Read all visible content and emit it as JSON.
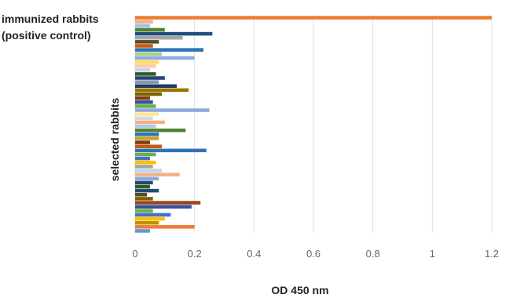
{
  "chart_data": {
    "type": "bar",
    "orientation": "horizontal",
    "title": "",
    "xlabel": "OD 450 nm",
    "ylabel": "selected rabbits",
    "annotation": [
      "immunized rabbits",
      "(positive control)"
    ],
    "xlim": [
      0,
      1.2
    ],
    "xticks": [
      "0",
      "0.2",
      "0.4",
      "0.6",
      "0.8",
      "1",
      "1.2"
    ],
    "grid": "vertical",
    "legend": "none",
    "values": [
      1.2,
      0.06,
      0.05,
      0.1,
      0.26,
      0.16,
      0.08,
      0.06,
      0.23,
      0.09,
      0.2,
      0.08,
      0.07,
      0.05,
      0.07,
      0.1,
      0.08,
      0.14,
      0.18,
      0.09,
      0.05,
      0.06,
      0.07,
      0.25,
      0.08,
      0.06,
      0.1,
      0.07,
      0.17,
      0.08,
      0.08,
      0.05,
      0.09,
      0.24,
      0.07,
      0.05,
      0.07,
      0.06,
      0.09,
      0.15,
      0.08,
      0.06,
      0.05,
      0.08,
      0.04,
      0.06,
      0.22,
      0.19,
      0.06,
      0.12,
      0.1,
      0.08,
      0.2,
      0.05
    ],
    "colors": [
      "#ED7D31",
      "#F4B183",
      "#9DC3E6",
      "#548235",
      "#1F4E79",
      "#A5A5A5",
      "#5E4A2E",
      "#C55A11",
      "#2E75B6",
      "#A9D18E",
      "#8FAADC",
      "#FFD966",
      "#F8CBAD",
      "#BDD7EE",
      "#385723",
      "#264478",
      "#8497B0",
      "#203864",
      "#997300",
      "#7F6000",
      "#843C0C",
      "#2F5597",
      "#70AD47",
      "#8FAADC",
      "#FFE699",
      "#D9D9D9",
      "#F4B183",
      "#B4C7E7",
      "#548235",
      "#2E75B6",
      "#C9A227",
      "#843C0C",
      "#C55A11",
      "#2E75B6",
      "#70AD47",
      "#4472C4",
      "#FFC000",
      "#A5A5A5",
      "#BDD7EE",
      "#F4B183",
      "#8FAADC",
      "#264478",
      "#385723",
      "#1F4E79",
      "#5E4A2E",
      "#7F6000",
      "#A0431E",
      "#2F5597",
      "#70AD47",
      "#4472C4",
      "#FFC000",
      "#BF9000",
      "#ED7D31",
      "#5B9BD5"
    ]
  }
}
